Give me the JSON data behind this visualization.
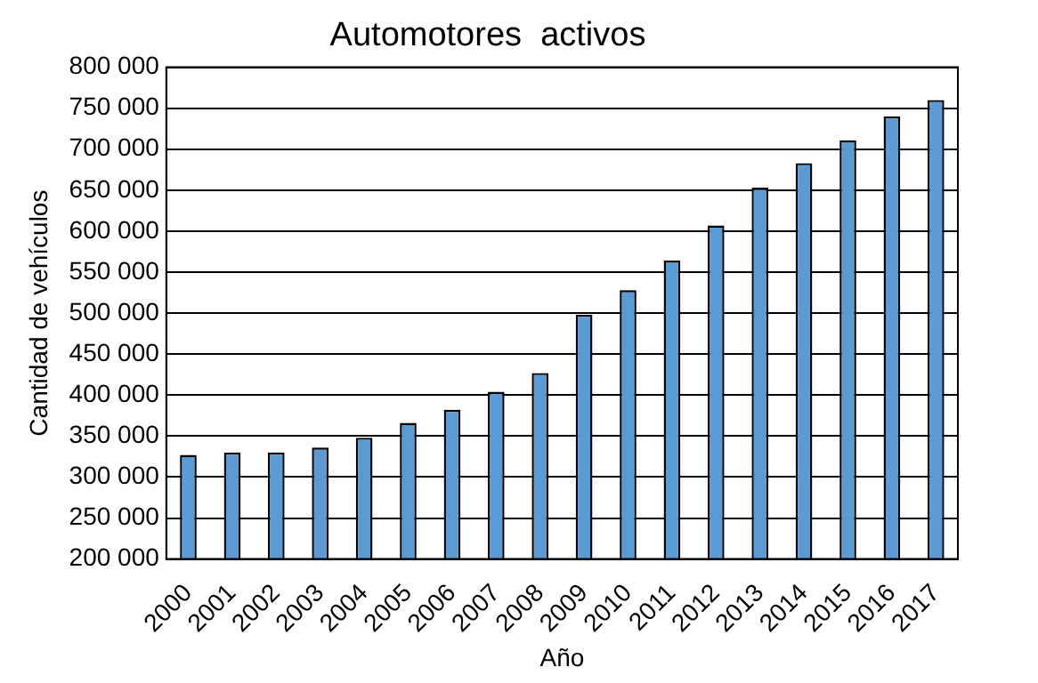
{
  "chart_data": {
    "type": "bar",
    "title": "Automotores  activos",
    "xlabel": "Año",
    "ylabel": "Cantidad de vehículos",
    "categories": [
      "2000",
      "2001",
      "2002",
      "2003",
      "2004",
      "2005",
      "2006",
      "2007",
      "2008",
      "2009",
      "2010",
      "2011",
      "2012",
      "2013",
      "2014",
      "2015",
      "2016",
      "2017"
    ],
    "values": [
      327000,
      330000,
      330000,
      336000,
      348000,
      366000,
      382000,
      404000,
      427000,
      498000,
      528000,
      564000,
      607000,
      653000,
      683000,
      711000,
      740000,
      760000
    ],
    "color": "#5b9bd5",
    "ylim": [
      200000,
      800000
    ],
    "yticks": [
      {
        "value": 200000,
        "label": "200 000"
      },
      {
        "value": 250000,
        "label": "250 000"
      },
      {
        "value": 300000,
        "label": "300 000"
      },
      {
        "value": 350000,
        "label": "350 000"
      },
      {
        "value": 400000,
        "label": "400 000"
      },
      {
        "value": 450000,
        "label": "450 000"
      },
      {
        "value": 500000,
        "label": "500 000"
      },
      {
        "value": 550000,
        "label": "550 000"
      },
      {
        "value": 600000,
        "label": "600 000"
      },
      {
        "value": 650000,
        "label": "650 000"
      },
      {
        "value": 700000,
        "label": "700 000"
      },
      {
        "value": 750000,
        "label": "750 000"
      },
      {
        "value": 800000,
        "label": "800 000"
      }
    ],
    "grid": "y",
    "legend": false
  }
}
